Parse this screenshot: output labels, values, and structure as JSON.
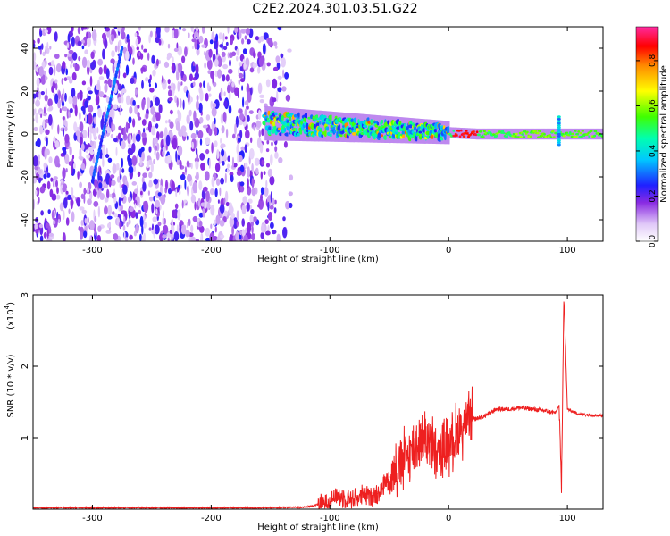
{
  "title": "C2E2.2024.301.03.51.G22",
  "chart_data": [
    {
      "type": "heatmap",
      "xlabel": "Height of straight line (km)",
      "ylabel": "Frequency (Hz)",
      "xlim": [
        -350,
        130
      ],
      "ylim": [
        -50,
        50
      ],
      "xticks": [
        -300,
        -200,
        -100,
        0,
        100
      ],
      "yticks": [
        -40,
        -20,
        0,
        20,
        40
      ],
      "colorbar": {
        "label": "Normalized spectral amplitude",
        "range": [
          0,
          0.95
        ],
        "ticks": [
          0.0,
          0.2,
          0.4,
          0.6,
          0.8
        ]
      },
      "features": [
        {
          "name": "diffuse noise",
          "x_range": [
            -350,
            -135
          ],
          "freq_range": [
            -50,
            50
          ],
          "amplitude": 0.1
        },
        {
          "name": "carrier band",
          "x_range": [
            -155,
            130
          ],
          "freq_center": [
            5,
            0
          ],
          "amplitude": [
            0.4,
            0.95
          ]
        },
        {
          "name": "doppler streak",
          "x": [
            -300,
            -275
          ],
          "freq": [
            -22,
            40
          ]
        },
        {
          "name": "spike",
          "x": 93,
          "freq_range": [
            -5,
            8
          ]
        }
      ]
    },
    {
      "type": "line",
      "xlabel": "Height of straight line (km)",
      "ylabel": "SNR (10 * v/v)",
      "multiplier": "(x10",
      "multiplier_exp": "4",
      "xlim": [
        -350,
        130
      ],
      "ylim": [
        0,
        3
      ],
      "xticks": [
        -300,
        -200,
        -100,
        0,
        100
      ],
      "yticks": [
        1,
        2,
        3
      ],
      "series": [
        {
          "color": "#ee2020",
          "x": [
            -350,
            -300,
            -250,
            -200,
            -150,
            -120,
            -105,
            -95,
            -80,
            -60,
            -50,
            -40,
            -30,
            -20,
            -10,
            0,
            10,
            20,
            30,
            40,
            50,
            60,
            70,
            80,
            90,
            93,
            95,
            97,
            100,
            110,
            120,
            130
          ],
          "y": [
            0.02,
            0.02,
            0.02,
            0.02,
            0.02,
            0.03,
            0.08,
            0.18,
            0.15,
            0.22,
            0.45,
            0.65,
            0.85,
            1.05,
            0.75,
            0.9,
            1.15,
            1.25,
            1.3,
            1.4,
            1.4,
            1.42,
            1.4,
            1.38,
            1.35,
            1.45,
            0.3,
            3.0,
            1.4,
            1.33,
            1.32,
            1.31
          ]
        }
      ]
    }
  ]
}
